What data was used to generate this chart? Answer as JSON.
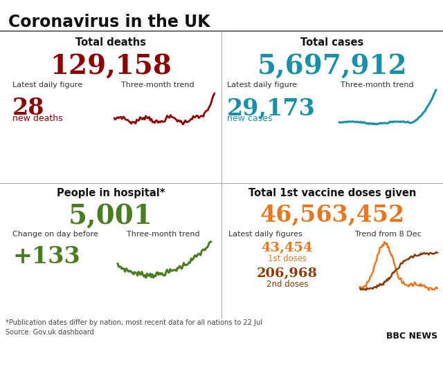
{
  "title": "Coronavirus in the UK",
  "background_color": "#ffffff",
  "divider_color": "#aaaaaa",
  "title_color": "#111111",
  "title_fontsize": 18,
  "sections": [
    {
      "id": "deaths",
      "header": "Total deaths",
      "header_color": "#111111",
      "big_number": "129,158",
      "big_color": "#8B0000",
      "sub_label1": "Latest daily figure",
      "sub_label2": "Three-month trend",
      "daily_value": "28",
      "daily_color": "#8B0000",
      "daily_sub": "new deaths",
      "daily_sub_color": "#8B0000",
      "trend_color": "#8B0000"
    },
    {
      "id": "cases",
      "header": "Total cases",
      "header_color": "#111111",
      "big_number": "5,697,912",
      "big_color": "#1a8fa8",
      "sub_label1": "Latest daily figure",
      "sub_label2": "Three-month trend",
      "daily_value": "29,173",
      "daily_color": "#1a8fa8",
      "daily_sub": "new cases",
      "daily_sub_color": "#1a8fa8",
      "trend_color": "#1a8fa8"
    },
    {
      "id": "hospital",
      "header": "People in hospital*",
      "header_color": "#111111",
      "big_number": "5,001",
      "big_color": "#4a7c20",
      "sub_label1": "Change on day before",
      "sub_label2": "Three-month trend",
      "daily_value": "+133",
      "daily_color": "#4a7c20",
      "trend_color": "#4a7c20"
    },
    {
      "id": "vaccine",
      "header": "Total 1st vaccine doses given",
      "header_color": "#111111",
      "big_number": "46,563,452",
      "big_color": "#E87722",
      "sub_label1": "Latest daily figures",
      "sub_label2": "Trend from 8 Dec",
      "daily_value1": "43,454",
      "daily_color1": "#E87722",
      "daily_sub1": "1st doses",
      "daily_sub1_color": "#E87722",
      "daily_value2": "206,968",
      "daily_color2": "#8B3A00",
      "daily_sub2": "2nd doses",
      "daily_sub2_color": "#8B3A00",
      "trend_color1": "#E87722",
      "trend_color2": "#8B3A00"
    }
  ],
  "footnote1": "*Publication dates differ by nation, most recent data for all nations to 22 Jul",
  "footnote2": "Source: Gov.uk dashboard",
  "bbc_text": "BBC NEWS",
  "footnote_color": "#444444",
  "bbc_color": "#111111"
}
